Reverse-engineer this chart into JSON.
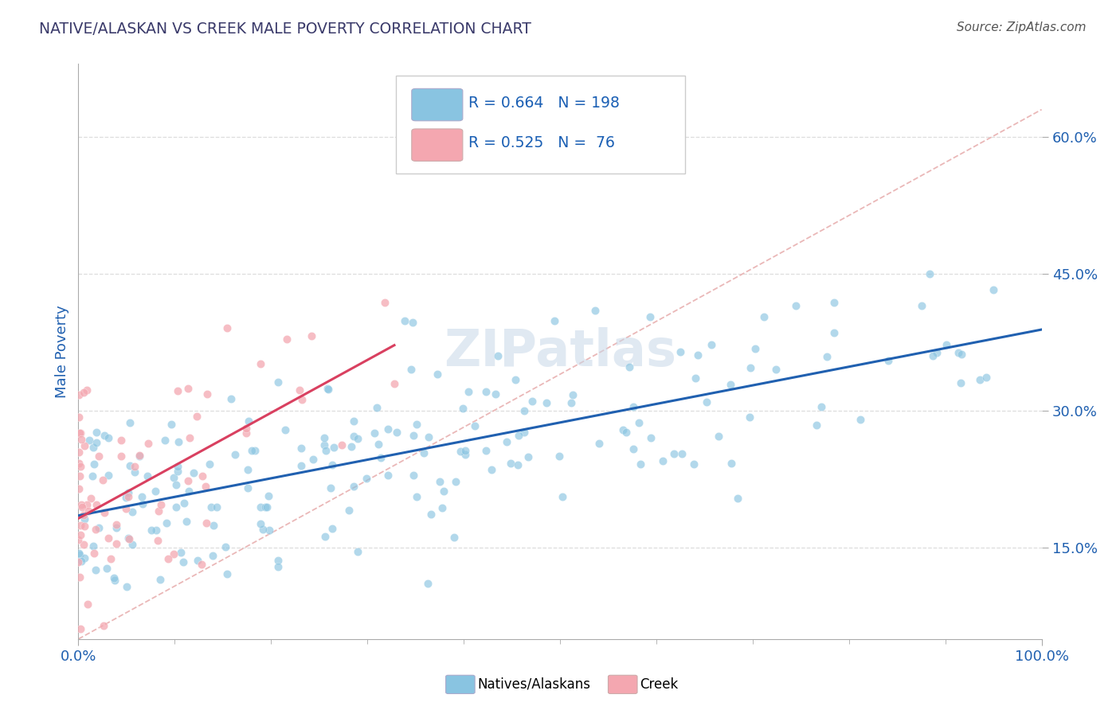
{
  "title": "NATIVE/ALASKAN VS CREEK MALE POVERTY CORRELATION CHART",
  "source": "Source: ZipAtlas.com",
  "ylabel": "Male Poverty",
  "xlim": [
    0.0,
    1.0
  ],
  "ylim": [
    0.05,
    0.68
  ],
  "ytick_vals": [
    0.15,
    0.3,
    0.45,
    0.6
  ],
  "ytick_labels": [
    "15.0%",
    "30.0%",
    "45.0%",
    "60.0%"
  ],
  "blue_color": "#89c4e1",
  "pink_color": "#f4a7b0",
  "blue_line_color": "#2060b0",
  "pink_line_color": "#d94060",
  "ref_line_color": "#e8b0b0",
  "blue_R": 0.664,
  "pink_R": 0.525,
  "blue_N": 198,
  "pink_N": 76,
  "legend_text_color": "#1a5fb4",
  "legend_N_color": "#cc2222",
  "title_color": "#3a3a6a",
  "axis_label_color": "#2060b0",
  "watermark": "ZIPatlas",
  "grid_color": "#dddddd",
  "seed": 12345
}
